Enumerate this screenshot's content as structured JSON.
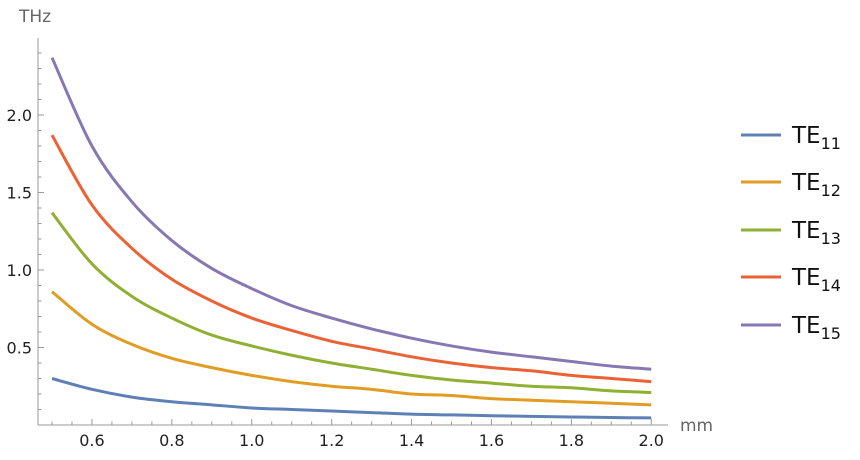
{
  "chart_data": {
    "type": "line",
    "title": "",
    "xlabel": "mm",
    "ylabel": "THz",
    "xlim": [
      0.45,
      2.03
    ],
    "ylim": [
      0,
      2.5
    ],
    "grid": false,
    "legend_position": "right",
    "x_ticks": [
      "0.6",
      "0.8",
      "1.0",
      "1.2",
      "1.4",
      "1.6",
      "1.8",
      "2.0"
    ],
    "y_ticks": [
      "0.5",
      "1.0",
      "1.5",
      "2.0"
    ],
    "x": [
      0.5,
      0.6,
      0.7,
      0.8,
      0.9,
      1.0,
      1.1,
      1.2,
      1.3,
      1.4,
      1.5,
      1.6,
      1.7,
      1.8,
      1.9,
      2.0
    ],
    "series": [
      {
        "name": "TE",
        "sub": "11",
        "color": "#5E81B5",
        "values": [
          0.3,
          0.23,
          0.18,
          0.15,
          0.13,
          0.11,
          0.1,
          0.09,
          0.08,
          0.07,
          0.065,
          0.06,
          0.056,
          0.052,
          0.048,
          0.046
        ]
      },
      {
        "name": "TE",
        "sub": "12",
        "color": "#E19C24",
        "values": [
          0.86,
          0.65,
          0.52,
          0.43,
          0.37,
          0.32,
          0.28,
          0.25,
          0.23,
          0.2,
          0.19,
          0.17,
          0.16,
          0.15,
          0.14,
          0.13
        ]
      },
      {
        "name": "TE",
        "sub": "13",
        "color": "#8FB032",
        "values": [
          1.37,
          1.04,
          0.83,
          0.69,
          0.58,
          0.51,
          0.45,
          0.4,
          0.36,
          0.32,
          0.29,
          0.27,
          0.25,
          0.24,
          0.22,
          0.21
        ]
      },
      {
        "name": "TE",
        "sub": "14",
        "color": "#EB6235",
        "values": [
          1.87,
          1.42,
          1.14,
          0.94,
          0.8,
          0.69,
          0.61,
          0.54,
          0.49,
          0.44,
          0.4,
          0.37,
          0.35,
          0.32,
          0.3,
          0.28
        ]
      },
      {
        "name": "TE",
        "sub": "15",
        "color": "#8778B3",
        "values": [
          2.37,
          1.8,
          1.44,
          1.19,
          1.01,
          0.88,
          0.77,
          0.69,
          0.62,
          0.56,
          0.51,
          0.47,
          0.44,
          0.41,
          0.38,
          0.36
        ]
      }
    ]
  }
}
